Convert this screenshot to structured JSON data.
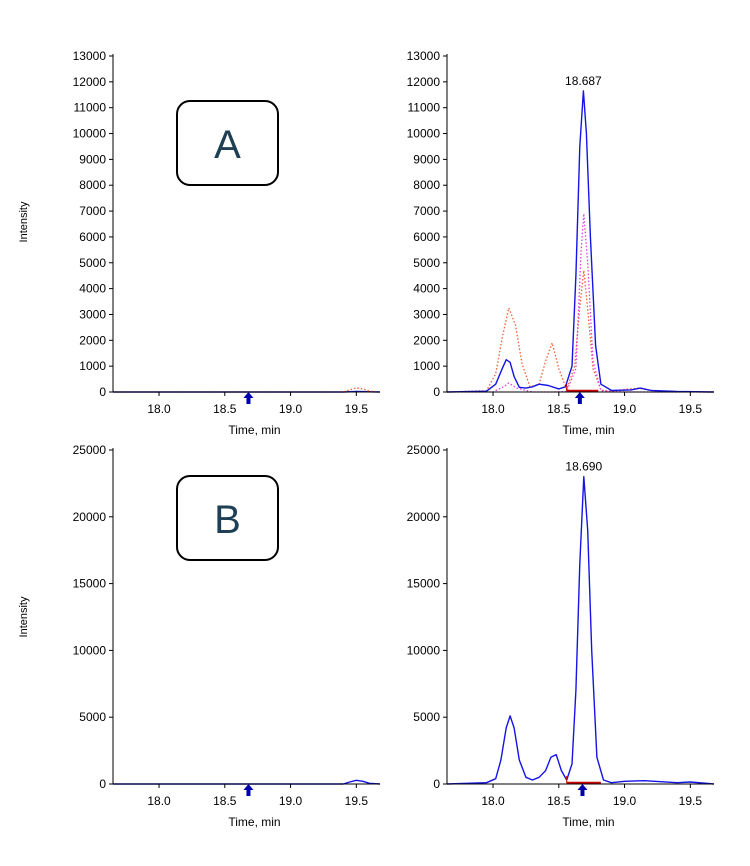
{
  "colors": {
    "blue": "#1414e6",
    "magenta": "#e040e0",
    "orange": "#f06030",
    "red": "#cc0000",
    "axis": "#000000",
    "label_box_text": "#1f3f55"
  },
  "ylabels": [
    "Intensity",
    "Intensity"
  ],
  "panel_labels": [
    "A",
    "B"
  ],
  "chart_data": [
    {
      "type": "line",
      "id": "A-left",
      "panel_label": "A",
      "xlabel": "Time, min",
      "ylabel": "Intensity",
      "xlim": [
        17.65,
        19.68
      ],
      "ylim": [
        0,
        13000
      ],
      "xticks": [
        18.0,
        18.5,
        19.0,
        19.5
      ],
      "xtick_labels": [
        "18.0",
        "18.5",
        "19.0",
        "19.5"
      ],
      "yticks": [
        0,
        1000,
        2000,
        3000,
        4000,
        5000,
        6000,
        7000,
        8000,
        9000,
        10000,
        11000,
        12000,
        13000
      ],
      "ytick_labels": [
        "0",
        "1000",
        "2000",
        "3000",
        "4000",
        "5000",
        "6000",
        "7000",
        "8000",
        "9000",
        "10000",
        "11000",
        "12000",
        "13000"
      ],
      "marker_x": 18.68,
      "series": [
        {
          "color": "blue",
          "dash": "solid",
          "x": [
            17.65,
            18.0,
            18.5,
            19.0,
            19.4,
            19.5,
            19.68
          ],
          "y": [
            0,
            0,
            0,
            0,
            0,
            20,
            0
          ]
        },
        {
          "color": "orange",
          "dash": "dotted",
          "x": [
            17.65,
            19.0,
            19.4,
            19.45,
            19.5,
            19.55,
            19.6,
            19.68
          ],
          "y": [
            0,
            0,
            0,
            80,
            160,
            120,
            30,
            0
          ]
        }
      ]
    },
    {
      "type": "line",
      "id": "A-right",
      "xlabel": "Time, min",
      "xlim": [
        17.65,
        19.68
      ],
      "ylim": [
        0,
        13000
      ],
      "xticks": [
        18.0,
        18.5,
        19.0,
        19.5
      ],
      "xtick_labels": [
        "18.0",
        "18.5",
        "19.0",
        "19.5"
      ],
      "yticks": [
        0,
        1000,
        2000,
        3000,
        4000,
        5000,
        6000,
        7000,
        8000,
        9000,
        10000,
        11000,
        12000,
        13000
      ],
      "ytick_labels": [
        "0",
        "1000",
        "2000",
        "3000",
        "4000",
        "5000",
        "6000",
        "7000",
        "8000",
        "9000",
        "10000",
        "11000",
        "12000",
        "13000"
      ],
      "annotation": {
        "text": "18.687",
        "x": 18.687,
        "y": 11650
      },
      "marker_x": 18.66,
      "baseline_segment": [
        18.56,
        18.8
      ],
      "series": [
        {
          "color": "orange",
          "dash": "dotted",
          "x": [
            17.65,
            17.95,
            18.02,
            18.07,
            18.12,
            18.17,
            18.22,
            18.28,
            18.35,
            18.4,
            18.45,
            18.5,
            18.56,
            18.62,
            18.66,
            18.69,
            18.72,
            18.76,
            18.82,
            18.9,
            19.0,
            19.1,
            19.2,
            19.3,
            19.68
          ],
          "y": [
            0,
            50,
            700,
            2100,
            3250,
            2600,
            1100,
            200,
            300,
            1200,
            1900,
            900,
            100,
            1000,
            3300,
            4700,
            3200,
            900,
            80,
            20,
            100,
            150,
            60,
            10,
            0
          ]
        },
        {
          "color": "magenta",
          "dash": "dotted",
          "x": [
            17.65,
            18.0,
            18.08,
            18.12,
            18.18,
            18.3,
            18.45,
            18.56,
            18.63,
            18.67,
            18.69,
            18.72,
            18.76,
            18.82,
            19.0,
            19.68
          ],
          "y": [
            0,
            0,
            200,
            350,
            150,
            0,
            0,
            20,
            900,
            5500,
            6900,
            5000,
            1200,
            50,
            0,
            0
          ]
        },
        {
          "color": "blue",
          "dash": "solid",
          "x": [
            17.65,
            17.95,
            18.02,
            18.07,
            18.1,
            18.13,
            18.16,
            18.2,
            18.25,
            18.3,
            18.35,
            18.42,
            18.5,
            18.55,
            18.6,
            18.63,
            18.66,
            18.687,
            18.71,
            18.74,
            18.78,
            18.82,
            18.9,
            19.05,
            19.12,
            19.2,
            19.4,
            19.68
          ],
          "y": [
            0,
            30,
            300,
            900,
            1250,
            1150,
            600,
            180,
            150,
            200,
            300,
            250,
            120,
            200,
            1000,
            4500,
            9500,
            11650,
            10000,
            6000,
            1800,
            300,
            60,
            80,
            150,
            60,
            20,
            0
          ]
        }
      ]
    },
    {
      "type": "line",
      "id": "B-left",
      "panel_label": "B",
      "xlabel": "Time, min",
      "ylabel": "Intensity",
      "xlim": [
        17.65,
        19.68
      ],
      "ylim": [
        0,
        25000
      ],
      "xticks": [
        18.0,
        18.5,
        19.0,
        19.5
      ],
      "xtick_labels": [
        "18.0",
        "18.5",
        "19.0",
        "19.5"
      ],
      "yticks": [
        0,
        5000,
        10000,
        15000,
        20000,
        25000
      ],
      "ytick_labels": [
        "0",
        "5000",
        "10000",
        "15000",
        "20000",
        "25000"
      ],
      "marker_x": 18.68,
      "series": [
        {
          "color": "blue",
          "dash": "solid",
          "x": [
            17.65,
            19.0,
            19.4,
            19.45,
            19.5,
            19.55,
            19.6,
            19.68
          ],
          "y": [
            0,
            0,
            0,
            150,
            280,
            200,
            50,
            0
          ]
        }
      ]
    },
    {
      "type": "line",
      "id": "B-right",
      "xlabel": "Time, min",
      "xlim": [
        17.65,
        19.68
      ],
      "ylim": [
        0,
        25000
      ],
      "xticks": [
        18.0,
        18.5,
        19.0,
        19.5
      ],
      "xtick_labels": [
        "18.0",
        "18.5",
        "19.0",
        "19.5"
      ],
      "yticks": [
        0,
        5000,
        10000,
        15000,
        20000,
        25000
      ],
      "ytick_labels": [
        "0",
        "5000",
        "10000",
        "15000",
        "20000",
        "25000"
      ],
      "annotation": {
        "text": "18.690",
        "x": 18.69,
        "y": 23000
      },
      "marker_x": 18.68,
      "baseline_segment": [
        18.56,
        18.82
      ],
      "series": [
        {
          "color": "blue",
          "dash": "solid",
          "x": [
            17.65,
            17.95,
            18.02,
            18.06,
            18.1,
            18.13,
            18.16,
            18.2,
            18.25,
            18.3,
            18.35,
            18.4,
            18.44,
            18.48,
            18.52,
            18.56,
            18.6,
            18.63,
            18.66,
            18.69,
            18.72,
            18.75,
            18.79,
            18.84,
            18.9,
            19.0,
            19.15,
            19.4,
            19.5,
            19.68
          ],
          "y": [
            0,
            100,
            400,
            1800,
            4200,
            5100,
            4200,
            1800,
            500,
            300,
            500,
            1000,
            2000,
            2200,
            1000,
            300,
            1500,
            7000,
            16500,
            23000,
            19000,
            10000,
            2000,
            300,
            100,
            200,
            250,
            100,
            150,
            0
          ]
        }
      ]
    }
  ]
}
